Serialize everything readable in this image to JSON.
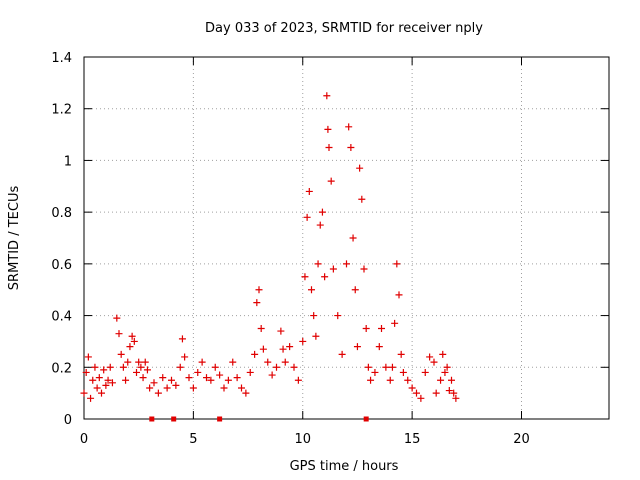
{
  "chart_data": {
    "type": "scatter",
    "title": "Day 033 of 2023, SRMTID for receiver nply",
    "xlabel": "GPS time / hours",
    "ylabel": "SRMTID / TECUs",
    "xlim": [
      0,
      24
    ],
    "ylim": [
      0,
      1.4
    ],
    "xticks": [
      0,
      5,
      10,
      15,
      20
    ],
    "yticks": [
      0,
      0.2,
      0.4,
      0.6,
      0.8,
      1,
      1.2,
      1.4
    ],
    "xtick_labels": [
      "0",
      "5",
      "10",
      "15",
      "20"
    ],
    "ytick_labels": [
      "0",
      "0.2",
      "0.4",
      "0.6",
      "0.8",
      "1",
      "1.2",
      "1.4"
    ],
    "grid": true,
    "marker": "plus",
    "color": "#e00000",
    "series": [
      {
        "name": "SRMTID",
        "points": [
          [
            0.0,
            0.1
          ],
          [
            0.1,
            0.18
          ],
          [
            0.2,
            0.24
          ],
          [
            0.3,
            0.08
          ],
          [
            0.4,
            0.15
          ],
          [
            0.5,
            0.2
          ],
          [
            0.6,
            0.12
          ],
          [
            0.7,
            0.16
          ],
          [
            0.8,
            0.1
          ],
          [
            0.9,
            0.19
          ],
          [
            1.0,
            0.13
          ],
          [
            1.1,
            0.15
          ],
          [
            1.2,
            0.2
          ],
          [
            1.3,
            0.14
          ],
          [
            1.5,
            0.39
          ],
          [
            1.6,
            0.33
          ],
          [
            1.7,
            0.25
          ],
          [
            1.8,
            0.2
          ],
          [
            1.9,
            0.15
          ],
          [
            2.0,
            0.22
          ],
          [
            2.1,
            0.28
          ],
          [
            2.2,
            0.32
          ],
          [
            2.3,
            0.3
          ],
          [
            2.4,
            0.18
          ],
          [
            2.5,
            0.22
          ],
          [
            2.6,
            0.2
          ],
          [
            2.7,
            0.16
          ],
          [
            2.8,
            0.22
          ],
          [
            2.9,
            0.19
          ],
          [
            3.0,
            0.12
          ],
          [
            3.2,
            0.14
          ],
          [
            3.4,
            0.1
          ],
          [
            3.6,
            0.16
          ],
          [
            3.8,
            0.12
          ],
          [
            4.0,
            0.15
          ],
          [
            4.2,
            0.13
          ],
          [
            4.4,
            0.2
          ],
          [
            4.5,
            0.31
          ],
          [
            4.6,
            0.24
          ],
          [
            4.8,
            0.16
          ],
          [
            5.0,
            0.12
          ],
          [
            5.2,
            0.18
          ],
          [
            5.4,
            0.22
          ],
          [
            5.6,
            0.16
          ],
          [
            5.8,
            0.15
          ],
          [
            6.0,
            0.2
          ],
          [
            6.2,
            0.17
          ],
          [
            6.4,
            0.12
          ],
          [
            6.6,
            0.15
          ],
          [
            6.8,
            0.22
          ],
          [
            7.0,
            0.16
          ],
          [
            7.2,
            0.12
          ],
          [
            7.4,
            0.1
          ],
          [
            7.6,
            0.18
          ],
          [
            7.8,
            0.25
          ],
          [
            7.9,
            0.45
          ],
          [
            8.0,
            0.5
          ],
          [
            8.1,
            0.35
          ],
          [
            8.2,
            0.27
          ],
          [
            8.4,
            0.22
          ],
          [
            8.6,
            0.17
          ],
          [
            8.8,
            0.2
          ],
          [
            9.0,
            0.34
          ],
          [
            9.1,
            0.27
          ],
          [
            9.2,
            0.22
          ],
          [
            9.4,
            0.28
          ],
          [
            9.6,
            0.2
          ],
          [
            9.8,
            0.15
          ],
          [
            10.0,
            0.3
          ],
          [
            10.1,
            0.55
          ],
          [
            10.2,
            0.78
          ],
          [
            10.3,
            0.88
          ],
          [
            10.4,
            0.5
          ],
          [
            10.5,
            0.4
          ],
          [
            10.6,
            0.32
          ],
          [
            10.7,
            0.6
          ],
          [
            10.8,
            0.75
          ],
          [
            10.9,
            0.8
          ],
          [
            11.0,
            0.55
          ],
          [
            11.1,
            1.25
          ],
          [
            11.15,
            1.12
          ],
          [
            11.2,
            1.05
          ],
          [
            11.3,
            0.92
          ],
          [
            11.4,
            0.58
          ],
          [
            11.6,
            0.4
          ],
          [
            11.8,
            0.25
          ],
          [
            12.0,
            0.6
          ],
          [
            12.1,
            1.13
          ],
          [
            12.2,
            1.05
          ],
          [
            12.3,
            0.7
          ],
          [
            12.4,
            0.5
          ],
          [
            12.5,
            0.28
          ],
          [
            12.6,
            0.97
          ],
          [
            12.7,
            0.85
          ],
          [
            12.8,
            0.58
          ],
          [
            12.9,
            0.35
          ],
          [
            13.0,
            0.2
          ],
          [
            13.1,
            0.15
          ],
          [
            13.3,
            0.18
          ],
          [
            13.5,
            0.28
          ],
          [
            13.6,
            0.35
          ],
          [
            13.8,
            0.2
          ],
          [
            14.0,
            0.15
          ],
          [
            14.1,
            0.2
          ],
          [
            14.2,
            0.37
          ],
          [
            14.3,
            0.6
          ],
          [
            14.4,
            0.48
          ],
          [
            14.5,
            0.25
          ],
          [
            14.6,
            0.18
          ],
          [
            14.8,
            0.15
          ],
          [
            15.0,
            0.12
          ],
          [
            15.2,
            0.1
          ],
          [
            15.4,
            0.08
          ],
          [
            15.6,
            0.18
          ],
          [
            15.8,
            0.24
          ],
          [
            16.0,
            0.22
          ],
          [
            16.1,
            0.1
          ],
          [
            16.3,
            0.15
          ],
          [
            16.4,
            0.25
          ],
          [
            16.5,
            0.18
          ],
          [
            16.6,
            0.2
          ],
          [
            16.7,
            0.11
          ],
          [
            16.8,
            0.15
          ],
          [
            16.9,
            0.1
          ],
          [
            17.0,
            0.08
          ]
        ]
      }
    ],
    "axis_markers_x": [
      3.1,
      4.1,
      6.2,
      12.9
    ]
  }
}
